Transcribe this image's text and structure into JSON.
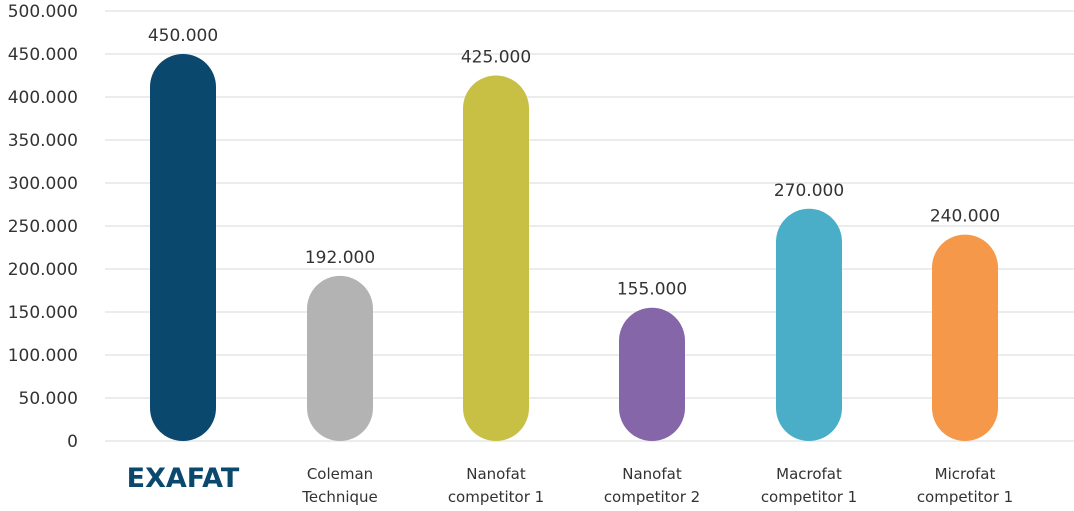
{
  "chart_data": {
    "type": "bar",
    "title": "",
    "xlabel": "",
    "ylabel": "",
    "ylim": [
      0,
      500000
    ],
    "yticks": [
      0,
      50000,
      100000,
      150000,
      200000,
      250000,
      300000,
      350000,
      400000,
      450000,
      500000
    ],
    "ytick_labels": [
      "0",
      "50.000",
      "100.000",
      "150.000",
      "200.000",
      "250.000",
      "300.000",
      "350.000",
      "400.000",
      "450.000",
      "500.000"
    ],
    "grid": true,
    "categories": [
      {
        "lines": [
          "EXAFAT"
        ],
        "brand": true
      },
      {
        "lines": [
          "Coleman",
          "Technique"
        ]
      },
      {
        "lines": [
          "Nanofat",
          "competitor 1"
        ]
      },
      {
        "lines": [
          "Nanofat",
          "competitor 2"
        ]
      },
      {
        "lines": [
          "Macrofat",
          "competitor 1"
        ]
      },
      {
        "lines": [
          "Microfat",
          "competitor 1"
        ]
      }
    ],
    "values": [
      450000,
      192000,
      425000,
      155000,
      270000,
      240000
    ],
    "value_labels": [
      "450.000",
      "192.000",
      "425.000",
      "155.000",
      "270.000",
      "240.000"
    ],
    "colors": [
      "#0a486e",
      "#b3b3b3",
      "#c8c044",
      "#8566a8",
      "#4aaec8",
      "#f5984a"
    ]
  }
}
